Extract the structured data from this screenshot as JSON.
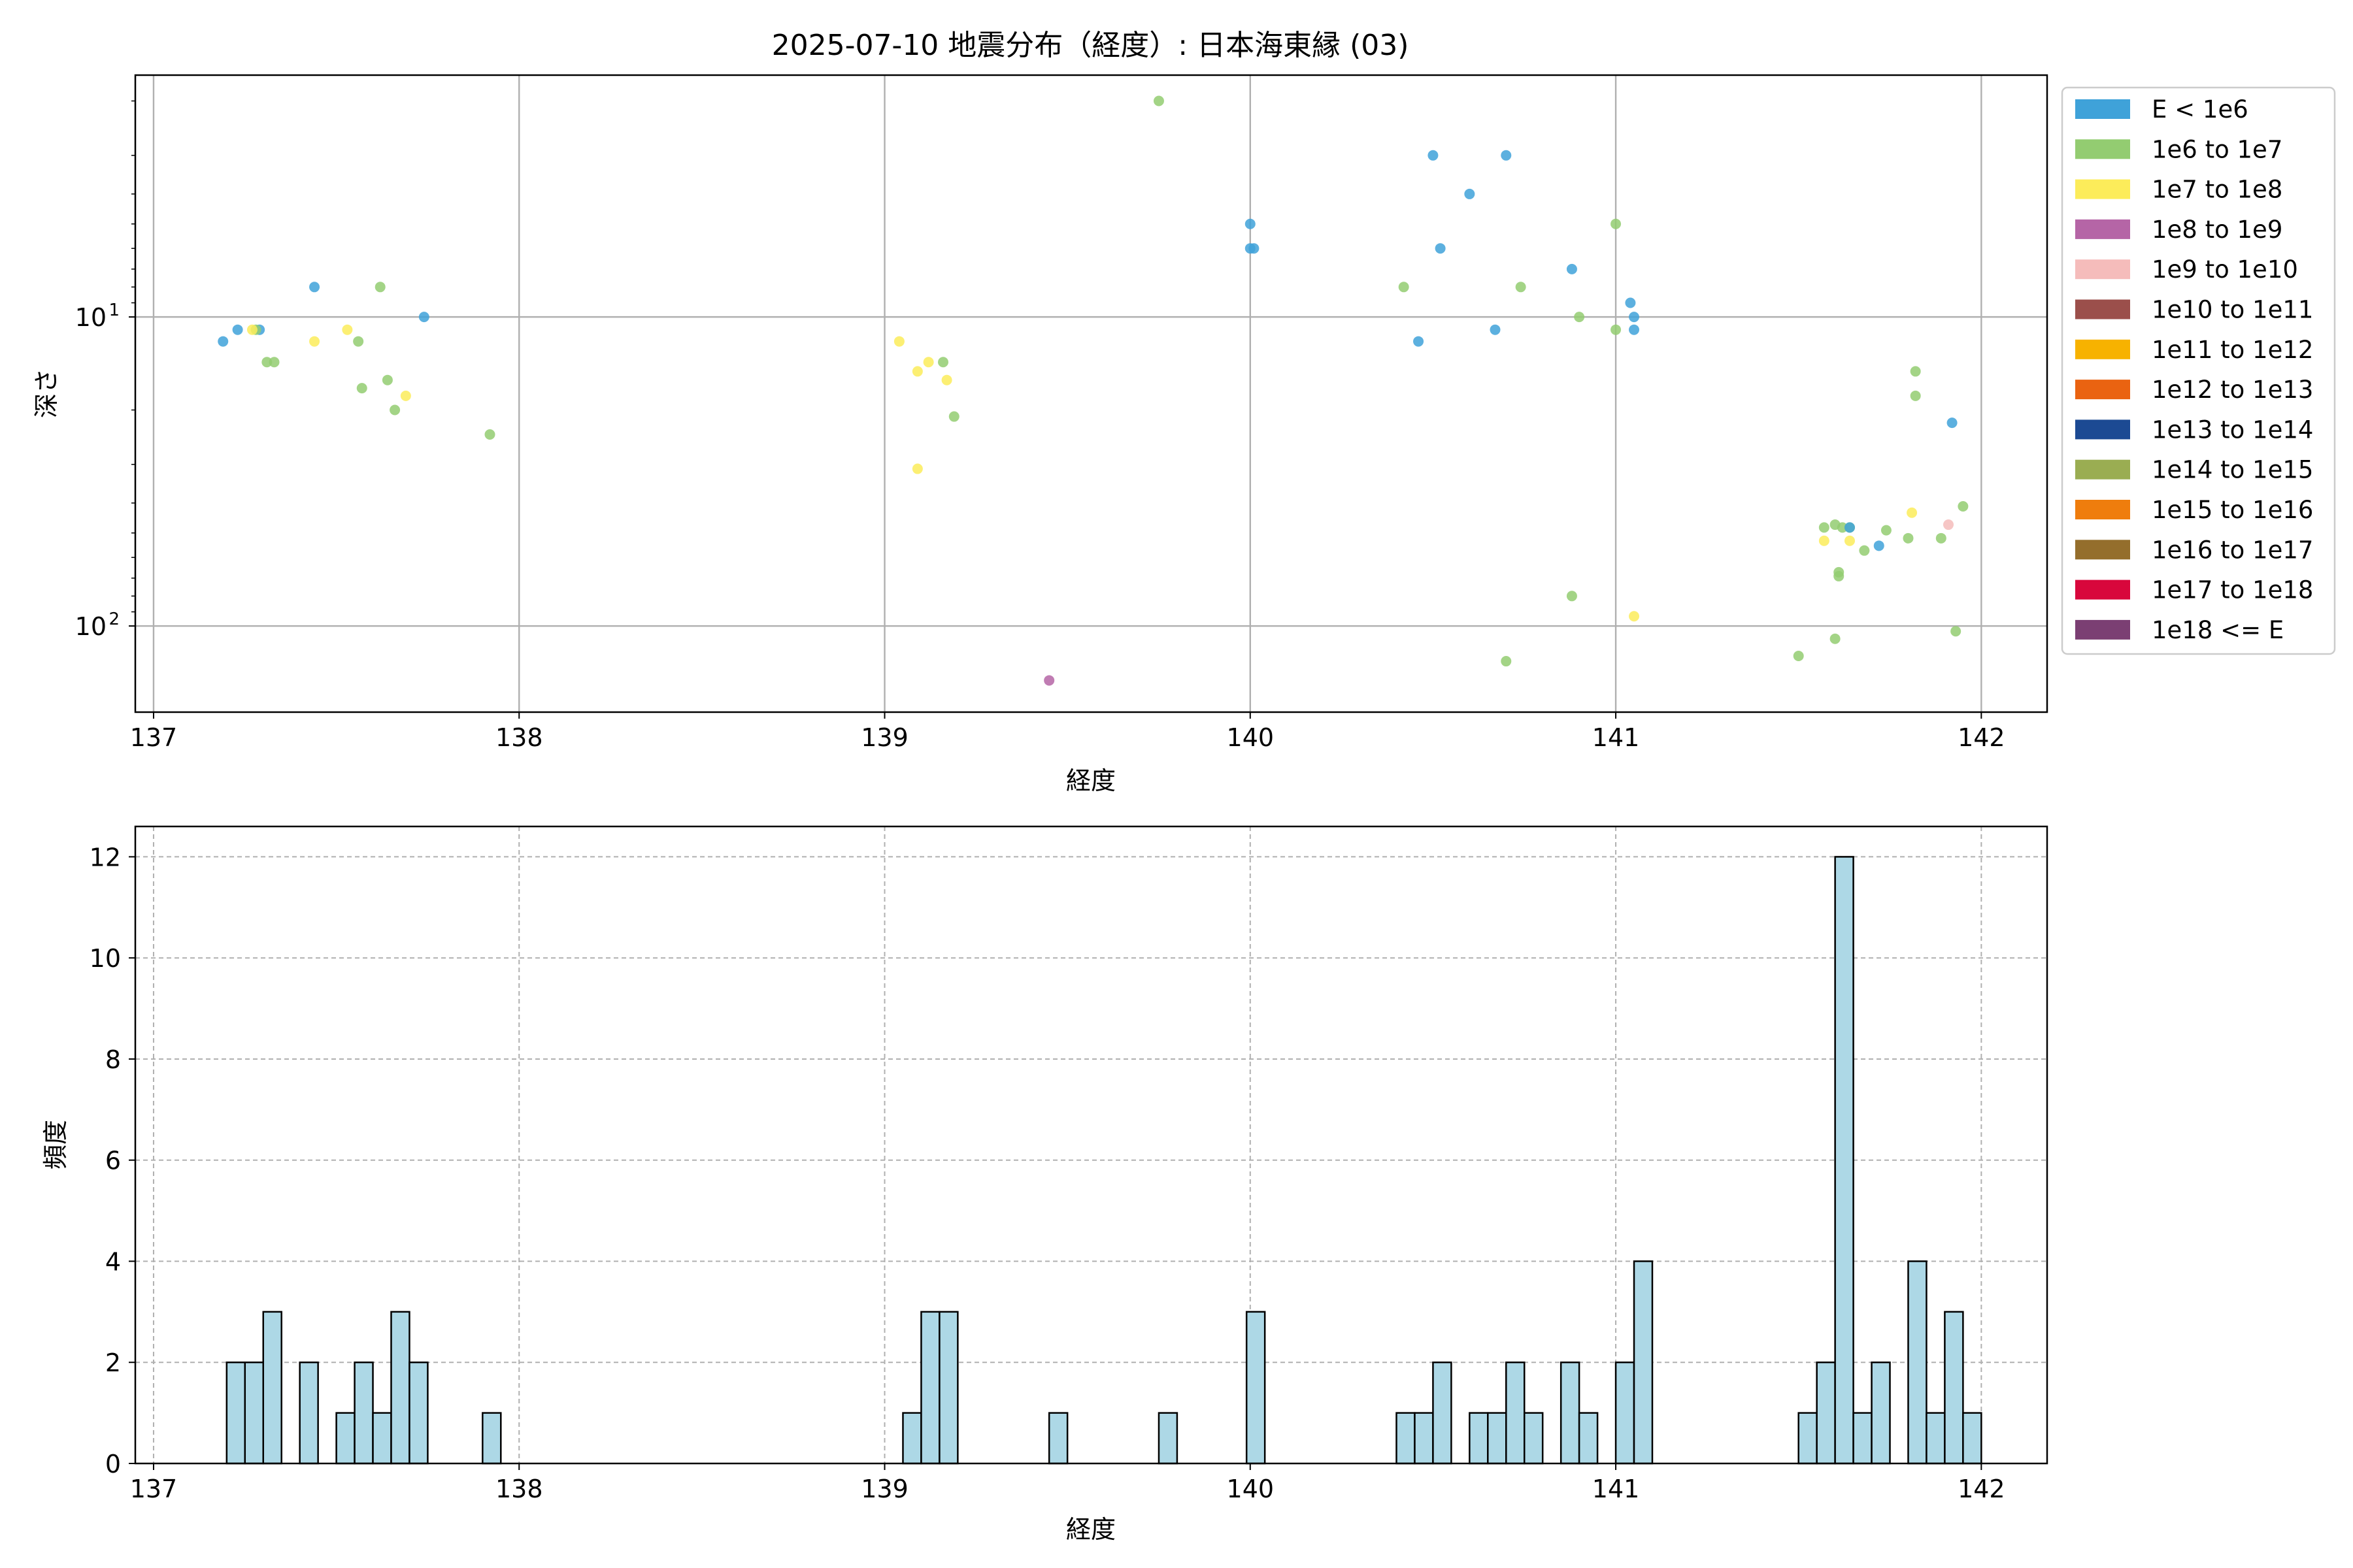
{
  "title": "2025-07-10 地震分布（経度）: 日本海東縁 (03)",
  "chart_data": [
    {
      "type": "scatter",
      "xlabel": "経度",
      "ylabel": "深さ",
      "xlim": [
        136.95,
        142.18
      ],
      "ylim": [
        190,
        1.65
      ],
      "y_scale": "log",
      "y_inverted": true,
      "xticks": [
        "137",
        "138",
        "139",
        "140",
        "141",
        "142"
      ],
      "yticks": [
        {
          "value": 10,
          "label": "10",
          "sup": "1"
        },
        {
          "value": 100,
          "label": "10",
          "sup": "2"
        }
      ],
      "grid": true,
      "legend_position": "outside-right",
      "legend": [
        {
          "label": "E < 1e6",
          "color": "#3fa2d9"
        },
        {
          "label": "1e6 to 1e7",
          "color": "#93cc71"
        },
        {
          "label": "1e7 to 1e8",
          "color": "#fcec5a"
        },
        {
          "label": "1e8 to 1e9",
          "color": "#b565a6"
        },
        {
          "label": "1e9 to 1e10",
          "color": "#f5bcbb"
        },
        {
          "label": "1e10 to 1e11",
          "color": "#9b4f4b"
        },
        {
          "label": "1e11 to 1e12",
          "color": "#f7b200"
        },
        {
          "label": "1e12 to 1e13",
          "color": "#ea6311"
        },
        {
          "label": "1e13 to 1e14",
          "color": "#1c4a93"
        },
        {
          "label": "1e14 to 1e15",
          "color": "#9aad52"
        },
        {
          "label": "1e15 to 1e16",
          "color": "#ef7d0d"
        },
        {
          "label": "1e16 to 1e17",
          "color": "#946e2c"
        },
        {
          "label": "1e17 to 1e18",
          "color": "#d8073c"
        },
        {
          "label": "1e18 <= E",
          "color": "#7b3f73"
        }
      ],
      "points": [
        {
          "x": 137.19,
          "y": 12,
          "c": 0
        },
        {
          "x": 137.23,
          "y": 11,
          "c": 0
        },
        {
          "x": 137.29,
          "y": 11,
          "c": 0
        },
        {
          "x": 137.44,
          "y": 8,
          "c": 0
        },
        {
          "x": 137.74,
          "y": 10,
          "c": 0
        },
        {
          "x": 137.28,
          "y": 11,
          "c": 1
        },
        {
          "x": 137.31,
          "y": 14,
          "c": 1
        },
        {
          "x": 137.33,
          "y": 14,
          "c": 1
        },
        {
          "x": 137.62,
          "y": 8,
          "c": 1
        },
        {
          "x": 137.56,
          "y": 12,
          "c": 1
        },
        {
          "x": 137.57,
          "y": 17,
          "c": 1
        },
        {
          "x": 137.64,
          "y": 16,
          "c": 1
        },
        {
          "x": 137.66,
          "y": 20,
          "c": 1
        },
        {
          "x": 137.92,
          "y": 24,
          "c": 1
        },
        {
          "x": 137.27,
          "y": 11,
          "c": 2
        },
        {
          "x": 137.44,
          "y": 12,
          "c": 2
        },
        {
          "x": 137.53,
          "y": 11,
          "c": 2
        },
        {
          "x": 137.69,
          "y": 18,
          "c": 2
        },
        {
          "x": 139.04,
          "y": 12,
          "c": 2
        },
        {
          "x": 139.09,
          "y": 15,
          "c": 2
        },
        {
          "x": 139.12,
          "y": 14,
          "c": 2
        },
        {
          "x": 139.17,
          "y": 16,
          "c": 2
        },
        {
          "x": 139.09,
          "y": 31,
          "c": 2
        },
        {
          "x": 139.16,
          "y": 14,
          "c": 1
        },
        {
          "x": 139.19,
          "y": 21,
          "c": 1
        },
        {
          "x": 139.45,
          "y": 150,
          "c": 3
        },
        {
          "x": 139.75,
          "y": 2,
          "c": 1
        },
        {
          "x": 140.0,
          "y": 6,
          "c": 0
        },
        {
          "x": 140.01,
          "y": 6,
          "c": 0
        },
        {
          "x": 140.0,
          "y": 5,
          "c": 0
        },
        {
          "x": 140.5,
          "y": 3,
          "c": 0
        },
        {
          "x": 140.7,
          "y": 3,
          "c": 0
        },
        {
          "x": 140.6,
          "y": 4,
          "c": 0
        },
        {
          "x": 140.52,
          "y": 6,
          "c": 0
        },
        {
          "x": 140.88,
          "y": 7,
          "c": 0
        },
        {
          "x": 140.46,
          "y": 12,
          "c": 0
        },
        {
          "x": 140.67,
          "y": 11,
          "c": 0
        },
        {
          "x": 141.04,
          "y": 9,
          "c": 0
        },
        {
          "x": 141.05,
          "y": 10,
          "c": 0
        },
        {
          "x": 141.05,
          "y": 11,
          "c": 0
        },
        {
          "x": 140.42,
          "y": 8,
          "c": 1
        },
        {
          "x": 140.74,
          "y": 8,
          "c": 1
        },
        {
          "x": 141.0,
          "y": 5,
          "c": 1
        },
        {
          "x": 140.9,
          "y": 10,
          "c": 1
        },
        {
          "x": 141.0,
          "y": 11,
          "c": 1
        },
        {
          "x": 140.88,
          "y": 80,
          "c": 1
        },
        {
          "x": 140.7,
          "y": 130,
          "c": 1
        },
        {
          "x": 141.05,
          "y": 93,
          "c": 2
        },
        {
          "x": 141.5,
          "y": 125,
          "c": 1
        },
        {
          "x": 141.6,
          "y": 110,
          "c": 1
        },
        {
          "x": 141.57,
          "y": 48,
          "c": 1
        },
        {
          "x": 141.6,
          "y": 47,
          "c": 1
        },
        {
          "x": 141.62,
          "y": 48,
          "c": 1
        },
        {
          "x": 141.64,
          "y": 48,
          "c": 1
        },
        {
          "x": 141.61,
          "y": 69,
          "c": 1
        },
        {
          "x": 141.61,
          "y": 67,
          "c": 1
        },
        {
          "x": 141.68,
          "y": 57,
          "c": 1
        },
        {
          "x": 141.74,
          "y": 49,
          "c": 1
        },
        {
          "x": 141.8,
          "y": 52,
          "c": 1
        },
        {
          "x": 141.82,
          "y": 15,
          "c": 1
        },
        {
          "x": 141.82,
          "y": 18,
          "c": 1
        },
        {
          "x": 141.89,
          "y": 52,
          "c": 1
        },
        {
          "x": 141.95,
          "y": 41,
          "c": 1
        },
        {
          "x": 141.93,
          "y": 104,
          "c": 1
        },
        {
          "x": 141.72,
          "y": 55,
          "c": 0
        },
        {
          "x": 141.92,
          "y": 22,
          "c": 0
        },
        {
          "x": 141.64,
          "y": 48,
          "c": 0
        },
        {
          "x": 141.57,
          "y": 53,
          "c": 2
        },
        {
          "x": 141.64,
          "y": 53,
          "c": 2
        },
        {
          "x": 141.81,
          "y": 43,
          "c": 2
        },
        {
          "x": 141.91,
          "y": 47,
          "c": 4
        }
      ]
    },
    {
      "type": "bar",
      "xlabel": "経度",
      "ylabel": "頻度",
      "xlim": [
        136.95,
        142.18
      ],
      "ylim": [
        0,
        12.6
      ],
      "xticks": [
        "137",
        "138",
        "139",
        "140",
        "141",
        "142"
      ],
      "yticks": [
        "0",
        "2",
        "4",
        "6",
        "8",
        "10",
        "12"
      ],
      "grid": true,
      "bin_width": 0.05,
      "bins": [
        {
          "x": 137.2,
          "v": 2
        },
        {
          "x": 137.25,
          "v": 2
        },
        {
          "x": 137.3,
          "v": 3
        },
        {
          "x": 137.4,
          "v": 2
        },
        {
          "x": 137.5,
          "v": 1
        },
        {
          "x": 137.55,
          "v": 2
        },
        {
          "x": 137.6,
          "v": 1
        },
        {
          "x": 137.65,
          "v": 3
        },
        {
          "x": 137.7,
          "v": 2
        },
        {
          "x": 137.9,
          "v": 1
        },
        {
          "x": 139.05,
          "v": 1
        },
        {
          "x": 139.1,
          "v": 3
        },
        {
          "x": 139.15,
          "v": 3
        },
        {
          "x": 139.45,
          "v": 1
        },
        {
          "x": 139.75,
          "v": 1
        },
        {
          "x": 139.99,
          "v": 3
        },
        {
          "x": 140.4,
          "v": 1
        },
        {
          "x": 140.45,
          "v": 1
        },
        {
          "x": 140.5,
          "v": 2
        },
        {
          "x": 140.6,
          "v": 1
        },
        {
          "x": 140.65,
          "v": 1
        },
        {
          "x": 140.7,
          "v": 2
        },
        {
          "x": 140.75,
          "v": 1
        },
        {
          "x": 140.85,
          "v": 2
        },
        {
          "x": 140.9,
          "v": 1
        },
        {
          "x": 141.0,
          "v": 2
        },
        {
          "x": 141.05,
          "v": 4
        },
        {
          "x": 141.5,
          "v": 1
        },
        {
          "x": 141.55,
          "v": 2
        },
        {
          "x": 141.6,
          "v": 12
        },
        {
          "x": 141.65,
          "v": 1
        },
        {
          "x": 141.7,
          "v": 2
        },
        {
          "x": 141.8,
          "v": 4
        },
        {
          "x": 141.85,
          "v": 1
        },
        {
          "x": 141.9,
          "v": 3
        },
        {
          "x": 141.95,
          "v": 1
        }
      ],
      "bar_color": "#add8e6"
    }
  ]
}
